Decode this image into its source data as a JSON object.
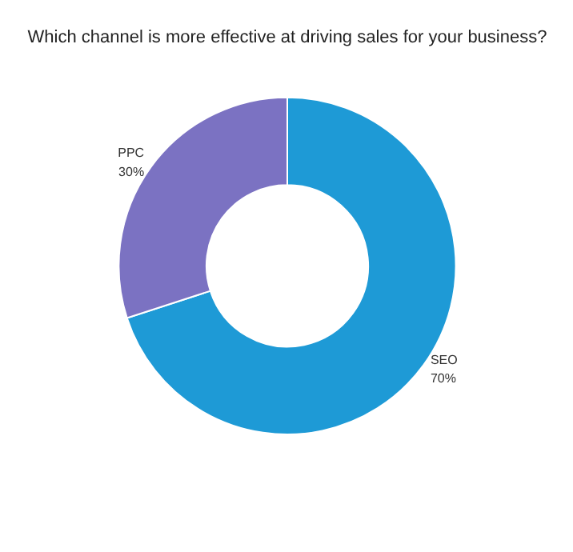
{
  "chart_data": {
    "type": "donut",
    "title": "Which channel is more effective at driving sales for your business?",
    "categories": [
      "SEO",
      "PPC"
    ],
    "values": [
      70,
      30
    ],
    "colors": [
      "#1e9ad6",
      "#7b72c2"
    ],
    "value_labels": [
      "70%",
      "30%"
    ]
  }
}
